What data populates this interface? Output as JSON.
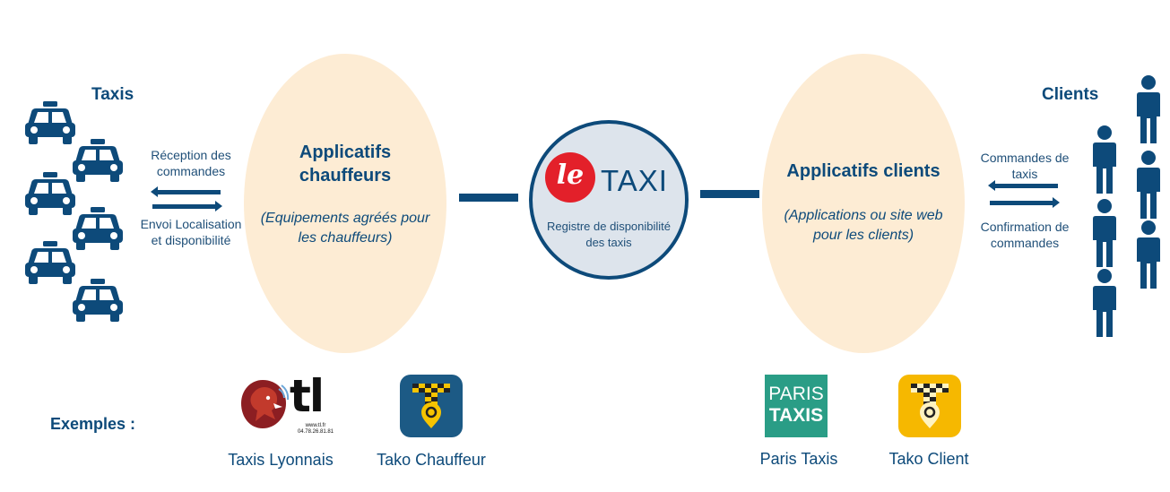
{
  "taxis": {
    "title": "Taxis"
  },
  "clients": {
    "title": "Clients"
  },
  "left_flow": {
    "top_label": "Réception des commandes",
    "bottom_label": "Envoi Localisation et disponibilité"
  },
  "right_flow": {
    "top_label": "Commandes de taxis",
    "bottom_label": "Confirmation de commandes"
  },
  "driver_apps": {
    "title": "Applicatifs chauffeurs",
    "subtitle": "(Equipements agréés pour les chauffeurs)"
  },
  "client_apps": {
    "title": "Applicatifs clients",
    "subtitle": "(Applications ou site web pour les clients)"
  },
  "center": {
    "logo_le": "le",
    "logo_taxi": "TAXI",
    "caption": "Registre de disponibilité des taxis"
  },
  "examples": {
    "label": "Exemples :",
    "items": [
      {
        "name": "Taxis Lyonnais",
        "logo_text": "tl",
        "logo_small": "www.tl.fr 04.78.26.81.81"
      },
      {
        "name": "Tako Chauffeur"
      },
      {
        "name": "Paris Taxis",
        "logo_line1": "PARIS",
        "logo_line2": "TAXIS"
      },
      {
        "name": "Tako Client"
      }
    ]
  },
  "colors": {
    "navy": "#0d4a7a",
    "peach": "#fdecd4",
    "red": "#e3202a",
    "paris_green": "#2a9d86",
    "tako_dark": "#1c5a85",
    "tako_yellow": "#f6b800"
  }
}
